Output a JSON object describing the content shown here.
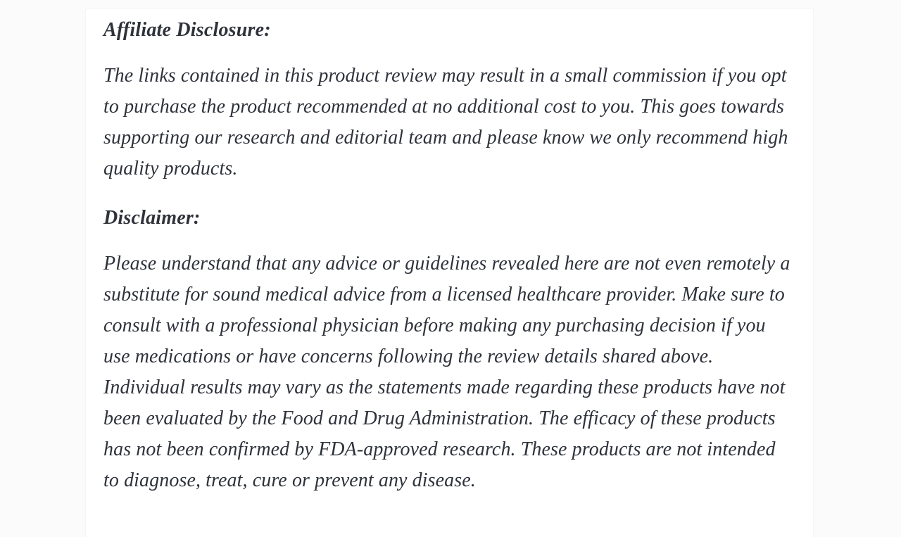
{
  "colors": {
    "text_color": "#2e323a",
    "page_background": "#fbfbfb",
    "card_background": "#ffffff"
  },
  "article": {
    "sections": [
      {
        "heading": "Affiliate Disclosure:",
        "paragraph": "The links contained in this product review may result in a small commission if you opt to purchase the product recommended at no additional cost to you. This goes towards supporting our research and editorial team and please know we only recommend high quality products."
      },
      {
        "heading": "Disclaimer:",
        "paragraph": "Please understand that any advice or guidelines revealed here are not even remotely a substitute for sound medical advice from a licensed healthcare provider. Make sure to consult with a professional physician before making any purchasing decision if you use medications or have concerns following the review details shared above. Individual results may vary as the statements made regarding these products have not been evaluated by the Food and Drug Administration. The efficacy of these products has not been confirmed by FDA-approved research. These products are not intended to diagnose, treat, cure or prevent any disease."
      }
    ]
  }
}
